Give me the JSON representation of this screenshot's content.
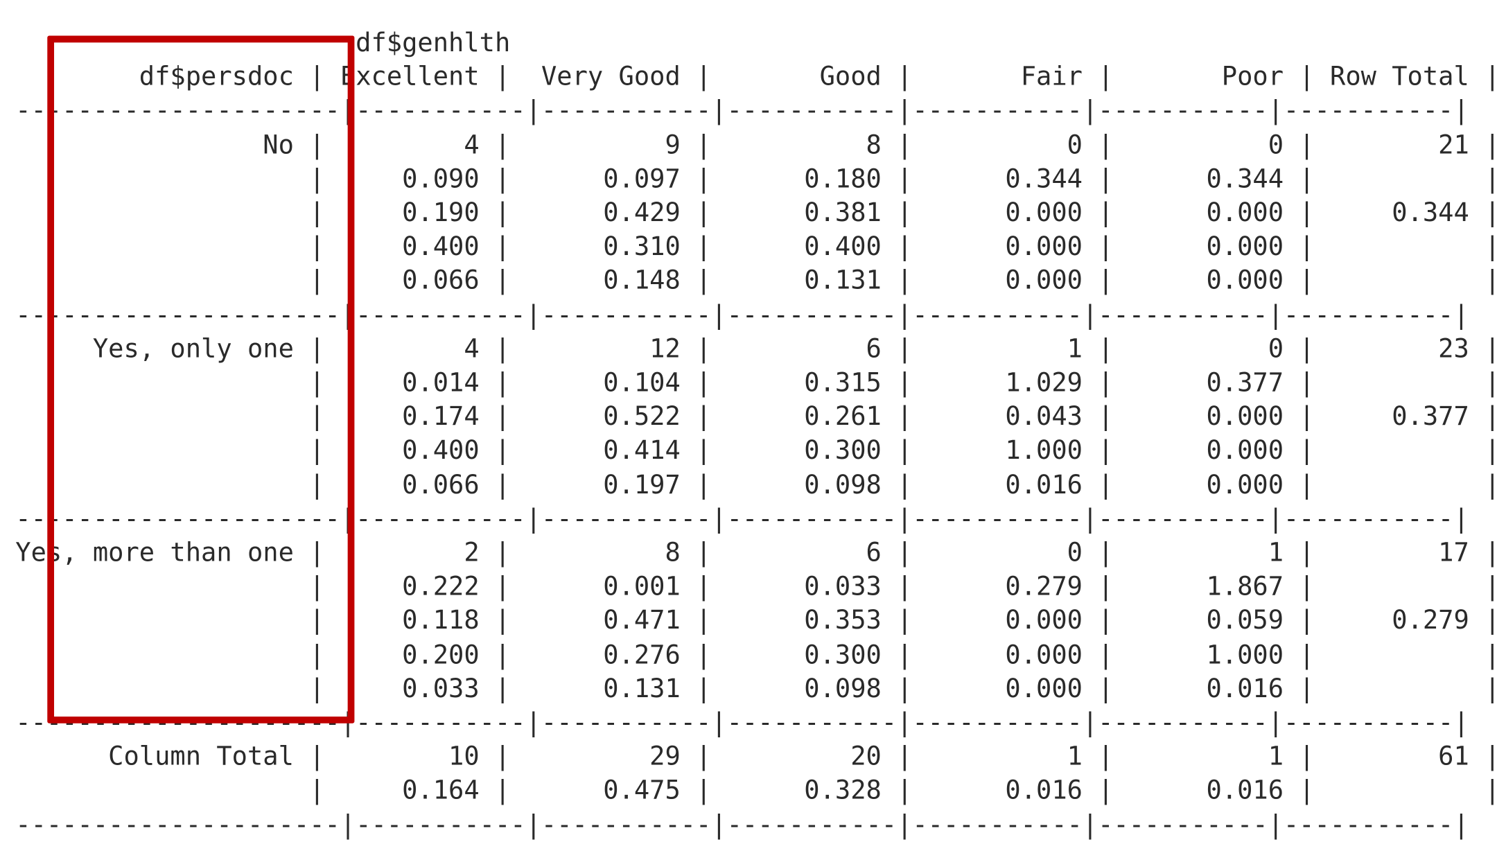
{
  "table": {
    "col_var_label": "df$genhlth",
    "header": {
      "row_var_label": "df$persdoc",
      "columns": [
        "Excellent",
        "Very Good",
        "Good",
        "Fair",
        "Poor"
      ],
      "row_total_label": "Row Total"
    },
    "rows": [
      {
        "label": "No",
        "count": [
          "4",
          "9",
          "8",
          "0",
          "0"
        ],
        "chisq": [
          "0.090",
          "0.097",
          "0.180",
          "0.344",
          "0.344"
        ],
        "row_prop": [
          "0.190",
          "0.429",
          "0.381",
          "0.000",
          "0.000"
        ],
        "col_prop": [
          "0.400",
          "0.310",
          "0.400",
          "0.000",
          "0.000"
        ],
        "tot_prop": [
          "0.066",
          "0.148",
          "0.131",
          "0.000",
          "0.000"
        ],
        "row_total": "21",
        "row_total_prop": "0.344"
      },
      {
        "label": "Yes, only one",
        "count": [
          "4",
          "12",
          "6",
          "1",
          "0"
        ],
        "chisq": [
          "0.014",
          "0.104",
          "0.315",
          "1.029",
          "0.377"
        ],
        "row_prop": [
          "0.174",
          "0.522",
          "0.261",
          "0.043",
          "0.000"
        ],
        "col_prop": [
          "0.400",
          "0.414",
          "0.300",
          "1.000",
          "0.000"
        ],
        "tot_prop": [
          "0.066",
          "0.197",
          "0.098",
          "0.016",
          "0.000"
        ],
        "row_total": "23",
        "row_total_prop": "0.377"
      },
      {
        "label": "Yes, more than one",
        "count": [
          "2",
          "8",
          "6",
          "0",
          "1"
        ],
        "chisq": [
          "0.222",
          "0.001",
          "0.033",
          "0.279",
          "1.867"
        ],
        "row_prop": [
          "0.118",
          "0.471",
          "0.353",
          "0.000",
          "0.059"
        ],
        "col_prop": [
          "0.200",
          "0.276",
          "0.300",
          "0.000",
          "1.000"
        ],
        "tot_prop": [
          "0.033",
          "0.131",
          "0.098",
          "0.000",
          "0.016"
        ],
        "row_total": "17",
        "row_total_prop": "0.279"
      }
    ],
    "column_total": {
      "label": "Column Total",
      "counts": [
        "10",
        "29",
        "20",
        "1",
        "1"
      ],
      "props": [
        "0.164",
        "0.475",
        "0.328",
        "0.016",
        "0.016"
      ],
      "grand_total": "61"
    }
  },
  "highlight": {
    "target": "df$persdoc",
    "color": "#c00000"
  }
}
